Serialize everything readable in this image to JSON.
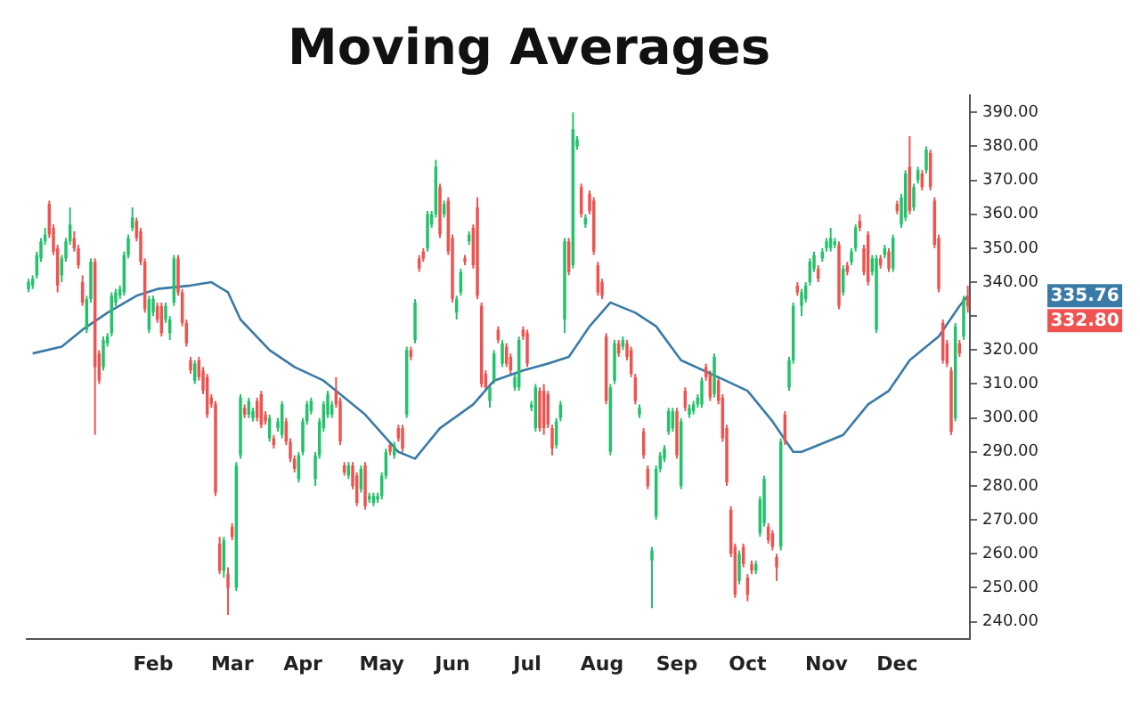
{
  "chart_data": {
    "type": "candlestick",
    "title": "Moving Averages",
    "categories": [
      null,
      null,
      null,
      null,
      null,
      null,
      null,
      null,
      null,
      null,
      null,
      null,
      null,
      null,
      null,
      null,
      null,
      null,
      null,
      null,
      null,
      null,
      null,
      null,
      null,
      null,
      null,
      null,
      null,
      null,
      "Feb",
      null,
      null,
      null,
      null,
      null,
      null,
      null,
      null,
      null,
      null,
      null,
      null,
      null,
      null,
      null,
      null,
      null,
      null,
      "Mar",
      null,
      null,
      null,
      null,
      null,
      null,
      null,
      null,
      null,
      null,
      null,
      null,
      null,
      null,
      null,
      null,
      "Apr",
      null,
      null,
      null,
      null,
      null,
      null,
      null,
      null,
      null,
      null,
      null,
      null,
      null,
      null,
      null,
      null,
      null,
      null,
      "May",
      null,
      null,
      null,
      null,
      null,
      null,
      null,
      null,
      null,
      null,
      null,
      null,
      null,
      null,
      null,
      null,
      "Jun",
      null,
      null,
      null,
      null,
      null,
      null,
      null,
      null,
      null,
      null,
      null,
      null,
      null,
      null,
      null,
      null,
      null,
      "Jul",
      null,
      null,
      null,
      null,
      null,
      null,
      null,
      null,
      null,
      null,
      null,
      null,
      null,
      null,
      null,
      null,
      null,
      "Aug",
      null,
      null,
      null,
      null,
      null,
      null,
      null,
      null,
      null,
      null,
      null,
      null,
      null,
      null,
      null,
      null,
      null,
      "Sep",
      null,
      null,
      null,
      null,
      null,
      null,
      null,
      null,
      null,
      null,
      null,
      null,
      null,
      null,
      null,
      null,
      "Oct",
      null,
      null,
      null,
      null,
      null,
      null,
      null,
      null,
      null,
      null,
      null,
      null,
      null,
      null,
      null,
      null,
      null,
      null,
      "Nov",
      null,
      null,
      null,
      null,
      null,
      null,
      null,
      null,
      null,
      null,
      null,
      null,
      null,
      null,
      null,
      null,
      "Dec",
      null,
      null,
      null,
      null,
      null,
      null,
      null,
      null,
      null,
      null,
      null,
      null,
      null,
      null,
      null,
      null,
      null
    ],
    "ohlc": [
      [
        338,
        341,
        337,
        340
      ],
      [
        339,
        342,
        338,
        341
      ],
      [
        342,
        349,
        341,
        348
      ],
      [
        347,
        353,
        346,
        352
      ],
      [
        352,
        356,
        351,
        354
      ],
      [
        363,
        364,
        353,
        354
      ],
      [
        356,
        357,
        348,
        349
      ],
      [
        350,
        351,
        337,
        339
      ],
      [
        342,
        348,
        340,
        347
      ],
      [
        347,
        353,
        346,
        352
      ],
      [
        352,
        362,
        351,
        357
      ],
      [
        353,
        355,
        349,
        350
      ],
      [
        350,
        351,
        344,
        345
      ],
      [
        340,
        342,
        333,
        334
      ],
      [
        326,
        336,
        325,
        335
      ],
      [
        335,
        347,
        334,
        346
      ],
      [
        346,
        347,
        295,
        315
      ],
      [
        319,
        320,
        310,
        311
      ],
      [
        315,
        324,
        314,
        323
      ],
      [
        322,
        325,
        321,
        324
      ],
      [
        325,
        337,
        324,
        336
      ],
      [
        334,
        338,
        333,
        337
      ],
      [
        336,
        339,
        335,
        338
      ],
      [
        337,
        349,
        336,
        348
      ],
      [
        348,
        354,
        347,
        353
      ],
      [
        356,
        362,
        355,
        359
      ],
      [
        358,
        359,
        352,
        353
      ],
      [
        355,
        356,
        345,
        346
      ],
      [
        346,
        347,
        331,
        332
      ],
      [
        326,
        336,
        325,
        335
      ],
      [
        331,
        336,
        330,
        335
      ],
      [
        333,
        334,
        328,
        329
      ],
      [
        333,
        334,
        324,
        325
      ],
      [
        329,
        334,
        328,
        333
      ],
      [
        325,
        330,
        323,
        329
      ],
      [
        334,
        348,
        333,
        347
      ],
      [
        347,
        348,
        336,
        337
      ],
      [
        337,
        338,
        327,
        328
      ],
      [
        328,
        329,
        321,
        322
      ],
      [
        317,
        318,
        313,
        314
      ],
      [
        311,
        317,
        310,
        316
      ],
      [
        317,
        318,
        311,
        312
      ],
      [
        314,
        315,
        307,
        308
      ],
      [
        312,
        313,
        300,
        301
      ],
      [
        306,
        307,
        303,
        304
      ],
      [
        304,
        305,
        277,
        278
      ],
      [
        263,
        265,
        254,
        255
      ],
      [
        255,
        265,
        253,
        264
      ],
      [
        254,
        256,
        242,
        250
      ],
      [
        268,
        269,
        264,
        265
      ],
      [
        250,
        287,
        249,
        286
      ],
      [
        289,
        307,
        288,
        306
      ],
      [
        303,
        304,
        300,
        301
      ],
      [
        301,
        306,
        300,
        305
      ],
      [
        300,
        303,
        299,
        302
      ],
      [
        305,
        306,
        299,
        300
      ],
      [
        307,
        308,
        297,
        298
      ],
      [
        301,
        302,
        298,
        299
      ],
      [
        294,
        301,
        293,
        300
      ],
      [
        294,
        295,
        291,
        292
      ],
      [
        297,
        300,
        296,
        299
      ],
      [
        295,
        305,
        294,
        304
      ],
      [
        299,
        300,
        292,
        293
      ],
      [
        293,
        294,
        287,
        288
      ],
      [
        288,
        289,
        284,
        285
      ],
      [
        282,
        290,
        281,
        289
      ],
      [
        290,
        300,
        289,
        299
      ],
      [
        299,
        305,
        298,
        304
      ],
      [
        302,
        306,
        301,
        305
      ],
      [
        282,
        290,
        280,
        289
      ],
      [
        289,
        300,
        288,
        299
      ],
      [
        297,
        305,
        296,
        304
      ],
      [
        301,
        308,
        300,
        307
      ],
      [
        301,
        305,
        300,
        304
      ],
      [
        308,
        312,
        303,
        304
      ],
      [
        305,
        306,
        292,
        293
      ],
      [
        286,
        287,
        283,
        284
      ],
      [
        283,
        287,
        282,
        286
      ],
      [
        286,
        287,
        279,
        280
      ],
      [
        283,
        284,
        274,
        275
      ],
      [
        279,
        286,
        278,
        285
      ],
      [
        286,
        287,
        273,
        274
      ],
      [
        276,
        278,
        275,
        277
      ],
      [
        275,
        278,
        274,
        277
      ],
      [
        276,
        278,
        275,
        277
      ],
      [
        277,
        284,
        276,
        283
      ],
      [
        283,
        291,
        282,
        290
      ],
      [
        292,
        293,
        289,
        290
      ],
      [
        289,
        293,
        288,
        292
      ],
      [
        297,
        298,
        293,
        294
      ],
      [
        297,
        298,
        290,
        291
      ],
      [
        301,
        321,
        300,
        320
      ],
      [
        320,
        321,
        317,
        318
      ],
      [
        323,
        335,
        322,
        334
      ],
      [
        347,
        348,
        343,
        344
      ],
      [
        349,
        350,
        346,
        347
      ],
      [
        350,
        361,
        349,
        360
      ],
      [
        357,
        361,
        356,
        360
      ],
      [
        360,
        376,
        359,
        374
      ],
      [
        368,
        369,
        353,
        354
      ],
      [
        360,
        364,
        359,
        363
      ],
      [
        364,
        365,
        348,
        349
      ],
      [
        353,
        354,
        334,
        335
      ],
      [
        331,
        336,
        329,
        335
      ],
      [
        337,
        344,
        336,
        343
      ],
      [
        347,
        348,
        345,
        346
      ],
      [
        352,
        355,
        351,
        354
      ],
      [
        356,
        357,
        344,
        345
      ],
      [
        362,
        365,
        335,
        336
      ],
      [
        333,
        334,
        309,
        310
      ],
      [
        313,
        314,
        308,
        309
      ],
      [
        305,
        310,
        303,
        309
      ],
      [
        311,
        320,
        310,
        319
      ],
      [
        326,
        327,
        322,
        323
      ],
      [
        316,
        323,
        315,
        322
      ],
      [
        321,
        322,
        315,
        316
      ],
      [
        318,
        319,
        313,
        314
      ],
      [
        309,
        313,
        308,
        312
      ],
      [
        309,
        324,
        308,
        323
      ],
      [
        326,
        327,
        323,
        324
      ],
      [
        325,
        326,
        315,
        316
      ],
      [
        303,
        305,
        302,
        304
      ],
      [
        297,
        310,
        296,
        309
      ],
      [
        308,
        309,
        296,
        297
      ],
      [
        308,
        310,
        295,
        297
      ],
      [
        307,
        308,
        297,
        298
      ],
      [
        297,
        298,
        289,
        291
      ],
      [
        292,
        300,
        291,
        299
      ],
      [
        300,
        305,
        299,
        304
      ],
      [
        329,
        353,
        325,
        352
      ],
      [
        352,
        353,
        342,
        343
      ],
      [
        345,
        390,
        344,
        385
      ],
      [
        380,
        383,
        379,
        382
      ],
      [
        368,
        369,
        359,
        360
      ],
      [
        357,
        360,
        356,
        359
      ],
      [
        366,
        367,
        360,
        361
      ],
      [
        364,
        365,
        348,
        349
      ],
      [
        345,
        346,
        336,
        337
      ],
      [
        340,
        341,
        335,
        336
      ],
      [
        324,
        325,
        304,
        305
      ],
      [
        290,
        310,
        289,
        309
      ],
      [
        311,
        323,
        310,
        322
      ],
      [
        322,
        323,
        318,
        319
      ],
      [
        321,
        324,
        320,
        323
      ],
      [
        322,
        323,
        317,
        318
      ],
      [
        320,
        321,
        312,
        313
      ],
      [
        312,
        313,
        304,
        305
      ],
      [
        301,
        304,
        300,
        303
      ],
      [
        296,
        297,
        288,
        289
      ],
      [
        285,
        286,
        279,
        280
      ],
      [
        258,
        262,
        244,
        261
      ],
      [
        271,
        286,
        270,
        285
      ],
      [
        285,
        290,
        284,
        289
      ],
      [
        288,
        292,
        287,
        291
      ],
      [
        296,
        303,
        295,
        302
      ],
      [
        297,
        303,
        296,
        302
      ],
      [
        302,
        303,
        288,
        289
      ],
      [
        280,
        300,
        279,
        299
      ],
      [
        308,
        309,
        302,
        303
      ],
      [
        301,
        304,
        300,
        303
      ],
      [
        302,
        305,
        301,
        304
      ],
      [
        304,
        307,
        303,
        306
      ],
      [
        304,
        312,
        303,
        311
      ],
      [
        315,
        316,
        311,
        312
      ],
      [
        313,
        314,
        305,
        306
      ],
      [
        307,
        319,
        306,
        318
      ],
      [
        311,
        312,
        304,
        305
      ],
      [
        306,
        307,
        293,
        294
      ],
      [
        297,
        298,
        280,
        281
      ],
      [
        273,
        274,
        259,
        260
      ],
      [
        262,
        263,
        247,
        248
      ],
      [
        252,
        261,
        251,
        260
      ],
      [
        262,
        263,
        256,
        257
      ],
      [
        253,
        254,
        246,
        248
      ],
      [
        257,
        258,
        254,
        255
      ],
      [
        255,
        258,
        254,
        257
      ],
      [
        266,
        277,
        265,
        276
      ],
      [
        269,
        283,
        268,
        282
      ],
      [
        268,
        269,
        263,
        264
      ],
      [
        266,
        267,
        261,
        262
      ],
      [
        259,
        260,
        252,
        256
      ],
      [
        262,
        294,
        261,
        293
      ],
      [
        301,
        302,
        292,
        293
      ],
      [
        309,
        318,
        308,
        317
      ],
      [
        317,
        334,
        316,
        333
      ],
      [
        339,
        340,
        336,
        337
      ],
      [
        333,
        338,
        330,
        337
      ],
      [
        335,
        340,
        334,
        339
      ],
      [
        340,
        347,
        339,
        346
      ],
      [
        344,
        349,
        343,
        348
      ],
      [
        344,
        345,
        340,
        341
      ],
      [
        347,
        350,
        346,
        349
      ],
      [
        350,
        353,
        349,
        352
      ],
      [
        350,
        356,
        349,
        353
      ],
      [
        351,
        353,
        350,
        352
      ],
      [
        351,
        352,
        332,
        333
      ],
      [
        337,
        345,
        336,
        344
      ],
      [
        345,
        346,
        342,
        343
      ],
      [
        346,
        350,
        345,
        349
      ],
      [
        350,
        357,
        349,
        356
      ],
      [
        358,
        360,
        355,
        356
      ],
      [
        350,
        351,
        342,
        343
      ],
      [
        354,
        355,
        339,
        340
      ],
      [
        343,
        348,
        342,
        347
      ],
      [
        326,
        348,
        325,
        347
      ],
      [
        347,
        348,
        344,
        345
      ],
      [
        348,
        351,
        347,
        350
      ],
      [
        349,
        350,
        343,
        344
      ],
      [
        344,
        354,
        343,
        353
      ],
      [
        363,
        364,
        360,
        361
      ],
      [
        357,
        366,
        356,
        365
      ],
      [
        359,
        373,
        358,
        372
      ],
      [
        374,
        383,
        360,
        361
      ],
      [
        362,
        369,
        361,
        368
      ],
      [
        370,
        374,
        369,
        373
      ],
      [
        372,
        373,
        367,
        368
      ],
      [
        373,
        380,
        372,
        379
      ],
      [
        378,
        379,
        367,
        368
      ],
      [
        364,
        365,
        350,
        351
      ],
      [
        353,
        354,
        337,
        338
      ],
      [
        328,
        329,
        316,
        317
      ],
      [
        322,
        323,
        315,
        316
      ],
      [
        314,
        315,
        295,
        296
      ],
      [
        300,
        328,
        299,
        327
      ],
      [
        322,
        323,
        318,
        319
      ],
      [
        324,
        336,
        323,
        335
      ],
      [
        336,
        339,
        331,
        332.8
      ]
    ],
    "colors": [
      "#22c26a",
      "#22c26a",
      "#22c26a",
      "#22c26a",
      "#22c26a",
      "#ef5350",
      "#ef5350",
      "#ef5350",
      "#22c26a",
      "#22c26a",
      "#22c26a",
      "#ef5350",
      "#ef5350",
      "#ef5350",
      "#22c26a",
      "#22c26a",
      "#ef5350",
      "#ef5350",
      "#22c26a",
      "#22c26a",
      "#22c26a",
      "#22c26a",
      "#22c26a",
      "#22c26a",
      "#22c26a",
      "#22c26a",
      "#ef5350",
      "#ef5350",
      "#ef5350",
      "#22c26a",
      "#22c26a",
      "#ef5350",
      "#ef5350",
      "#22c26a",
      "#22c26a",
      "#22c26a",
      "#ef5350",
      "#ef5350",
      "#ef5350",
      "#ef5350",
      "#22c26a",
      "#ef5350",
      "#ef5350",
      "#ef5350",
      "#ef5350",
      "#ef5350",
      "#ef5350",
      "#22c26a",
      "#ef5350",
      "#ef5350",
      "#22c26a",
      "#22c26a",
      "#ef5350",
      "#22c26a",
      "#22c26a",
      "#ef5350",
      "#ef5350",
      "#ef5350",
      "#22c26a",
      "#ef5350",
      "#22c26a",
      "#22c26a",
      "#ef5350",
      "#ef5350",
      "#ef5350",
      "#22c26a",
      "#22c26a",
      "#22c26a",
      "#22c26a",
      "#22c26a",
      "#22c26a",
      "#22c26a",
      "#22c26a",
      "#22c26a",
      "#ef5350",
      "#ef5350",
      "#ef5350",
      "#22c26a",
      "#ef5350",
      "#ef5350",
      "#22c26a",
      "#ef5350",
      "#22c26a",
      "#22c26a",
      "#22c26a",
      "#22c26a",
      "#22c26a",
      "#ef5350",
      "#22c26a",
      "#ef5350",
      "#ef5350",
      "#22c26a",
      "#ef5350",
      "#22c26a",
      "#ef5350",
      "#ef5350",
      "#22c26a",
      "#22c26a",
      "#22c26a",
      "#ef5350",
      "#22c26a",
      "#ef5350",
      "#ef5350",
      "#22c26a",
      "#22c26a",
      "#ef5350",
      "#22c26a",
      "#ef5350",
      "#ef5350",
      "#ef5350",
      "#ef5350",
      "#22c26a",
      "#22c26a",
      "#ef5350",
      "#22c26a",
      "#ef5350",
      "#ef5350",
      "#22c26a",
      "#22c26a",
      "#ef5350",
      "#ef5350",
      "#22c26a",
      "#22c26a",
      "#ef5350",
      "#ef5350",
      "#ef5350",
      "#ef5350",
      "#22c26a",
      "#22c26a",
      "#22c26a",
      "#ef5350",
      "#22c26a",
      "#22c26a",
      "#ef5350",
      "#22c26a",
      "#ef5350",
      "#ef5350",
      "#ef5350",
      "#ef5350",
      "#ef5350",
      "#22c26a",
      "#22c26a",
      "#ef5350",
      "#22c26a",
      "#ef5350",
      "#ef5350",
      "#ef5350",
      "#22c26a",
      "#ef5350",
      "#ef5350",
      "#22c26a",
      "#22c26a",
      "#22c26a",
      "#22c26a",
      "#22c26a",
      "#22c26a",
      "#ef5350",
      "#22c26a",
      "#ef5350",
      "#22c26a",
      "#22c26a",
      "#22c26a",
      "#22c26a",
      "#ef5350",
      "#ef5350",
      "#22c26a",
      "#ef5350",
      "#ef5350",
      "#ef5350",
      "#ef5350",
      "#ef5350",
      "#22c26a",
      "#ef5350",
      "#ef5350",
      "#ef5350",
      "#22c26a",
      "#22c26a",
      "#22c26a",
      "#ef5350",
      "#ef5350",
      "#ef5350",
      "#22c26a",
      "#ef5350",
      "#22c26a",
      "#22c26a",
      "#ef5350",
      "#22c26a",
      "#22c26a",
      "#22c26a",
      "#22c26a",
      "#ef5350",
      "#22c26a",
      "#22c26a",
      "#22c26a",
      "#22c26a",
      "#ef5350",
      "#22c26a",
      "#ef5350",
      "#22c26a",
      "#22c26a",
      "#ef5350",
      "#ef5350",
      "#ef5350",
      "#22c26a",
      "#22c26a",
      "#ef5350",
      "#22c26a",
      "#ef5350",
      "#22c26a",
      "#ef5350",
      "#22c26a",
      "#22c26a",
      "#ef5350",
      "#22c26a",
      "#22c26a",
      "#ef5350",
      "#22c26a",
      "#ef5350",
      "#ef5350",
      "#ef5350",
      "#ef5350",
      "#ef5350",
      "#ef5350",
      "#22c26a",
      "#ef5350",
      "#22c26a",
      "#ef5350"
    ],
    "series": [
      {
        "type": "line",
        "color": "#3a7aa6",
        "values": [
          null,
          319,
          null,
          null,
          null,
          null,
          null,
          null,
          321,
          null,
          null,
          null,
          null,
          326,
          null,
          null,
          null,
          null,
          null,
          331,
          null,
          null,
          null,
          null,
          null,
          null,
          336,
          null,
          null,
          null,
          null,
          338,
          null,
          null,
          null,
          null,
          null,
          null,
          null,
          339,
          null,
          null,
          null,
          null,
          340,
          null,
          null,
          null,
          337,
          null,
          null,
          329,
          null,
          null,
          null,
          null,
          null,
          null,
          320,
          null,
          null,
          null,
          null,
          null,
          315,
          null,
          null,
          null,
          null,
          null,
          null,
          311,
          null,
          null,
          null,
          null,
          null,
          305,
          null,
          null,
          null,
          301,
          null,
          null,
          null,
          null,
          null,
          null,
          null,
          290,
          null,
          null,
          null,
          288,
          null,
          null,
          null,
          null,
          null,
          297,
          null,
          null,
          null,
          null,
          null,
          null,
          null,
          304,
          null,
          null,
          null,
          null,
          311,
          null,
          null,
          null,
          null,
          null,
          null,
          314,
          null,
          null,
          null,
          null,
          null,
          316,
          null,
          null,
          null,
          null,
          318,
          null,
          null,
          null,
          null,
          327,
          null,
          null,
          null,
          null,
          334,
          null,
          null,
          null,
          null,
          null,
          331,
          null,
          null,
          null,
          null,
          327,
          null,
          null,
          null,
          null,
          null,
          317,
          null,
          null,
          null,
          null,
          null,
          null,
          null,
          null,
          312,
          null,
          null,
          null,
          null,
          null,
          null,
          308,
          null,
          null,
          null,
          null,
          null,
          299,
          null,
          null,
          null,
          null,
          290,
          null,
          290,
          null,
          null,
          null,
          null,
          null,
          null,
          null,
          null,
          null,
          295,
          null,
          null,
          null,
          null,
          null,
          304,
          null,
          null,
          null,
          null,
          308,
          null,
          null,
          null,
          null,
          317,
          null,
          null,
          null,
          null,
          null,
          null,
          324,
          null,
          null,
          null,
          null,
          333,
          null,
          336
        ]
      }
    ],
    "ylim": [
      235,
      395
    ],
    "yticks": [
      {
        "value": 240,
        "label": "240.00"
      },
      {
        "value": 250,
        "label": "250.00"
      },
      {
        "value": 260,
        "label": "260.00"
      },
      {
        "value": 270,
        "label": "270.00"
      },
      {
        "value": 280,
        "label": "280.00"
      },
      {
        "value": 290,
        "label": "290.00"
      },
      {
        "value": 300,
        "label": "300.00"
      },
      {
        "value": 310,
        "label": "310.00"
      },
      {
        "value": 320,
        "label": "320.00"
      },
      {
        "value": 330,
        "label": null
      },
      {
        "value": 340,
        "label": "340.00"
      },
      {
        "value": 350,
        "label": "350.00"
      },
      {
        "value": 360,
        "label": "360.00"
      },
      {
        "value": 370,
        "label": "370.00"
      },
      {
        "value": 380,
        "label": "380.00"
      },
      {
        "value": 390,
        "label": "390.00"
      }
    ],
    "annotations": [
      "335.76",
      "332.80"
    ],
    "legend": false
  }
}
